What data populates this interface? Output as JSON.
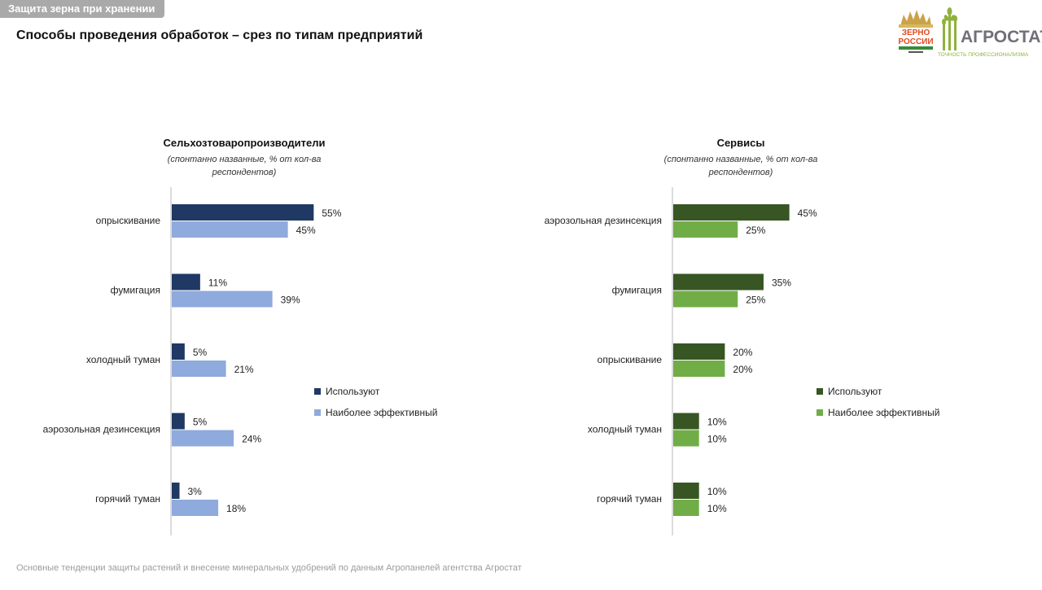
{
  "header": {
    "section_tag": "Защита зерна при хранении",
    "title": "Способы проведения обработок – срез по типам предприятий"
  },
  "logos": {
    "zerno": {
      "line1": "ЗЕРНО",
      "line2": "РОССИИ"
    },
    "agrostat": {
      "name": "АГРОСТАТ",
      "tagline": "ТОЧНОСТЬ ПРОФЕССИОНАЛИЗМА"
    }
  },
  "colors": {
    "left_use": "#1f3864",
    "left_effective": "#8faadc",
    "right_use": "#375623",
    "right_effective": "#70ad47",
    "axis": "#d0d0d0"
  },
  "chart_data": [
    {
      "type": "bar",
      "orientation": "horizontal",
      "title": "Сельхозтоваропроизводители",
      "subtitle_line1": "(спонтанно названные, % от кол-ва",
      "subtitle_line2": "респондентов)",
      "categories": [
        "опрыскивание",
        "фумигация",
        "холодный туман",
        "аэрозольная дезинсекция",
        "горячий туман"
      ],
      "series": [
        {
          "name": "Используют",
          "values": [
            55,
            11,
            5,
            5,
            3
          ],
          "labels": [
            "55%",
            "11%",
            "5%",
            "5%",
            "3%"
          ]
        },
        {
          "name": "Наиболее эффективный",
          "values": [
            45,
            39,
            21,
            24,
            18
          ],
          "labels": [
            "45%",
            "39%",
            "21%",
            "24%",
            "18%"
          ]
        }
      ],
      "unit": "%",
      "legend_position": "right",
      "grid": false
    },
    {
      "type": "bar",
      "orientation": "horizontal",
      "title": "Сервисы",
      "subtitle_line1": "(спонтанно названные, % от кол-ва",
      "subtitle_line2": "респондентов)",
      "categories": [
        "аэрозольная дезинсекция",
        "фумигация",
        "опрыскивание",
        "холодный туман",
        "горячий туман"
      ],
      "series": [
        {
          "name": "Используют",
          "values": [
            45,
            35,
            20,
            10,
            10
          ],
          "labels": [
            "45%",
            "35%",
            "20%",
            "10%",
            "10%"
          ]
        },
        {
          "name": "Наиболее эффективный",
          "values": [
            25,
            25,
            20,
            10,
            10
          ],
          "labels": [
            "25%",
            "25%",
            "20%",
            "10%",
            "10%"
          ]
        }
      ],
      "unit": "%",
      "legend_position": "right",
      "grid": false
    }
  ],
  "footer": {
    "text": "Основные тенденции защиты растений и внесение минеральных удобрений  по данным Агропанелей агентства Агростат"
  }
}
